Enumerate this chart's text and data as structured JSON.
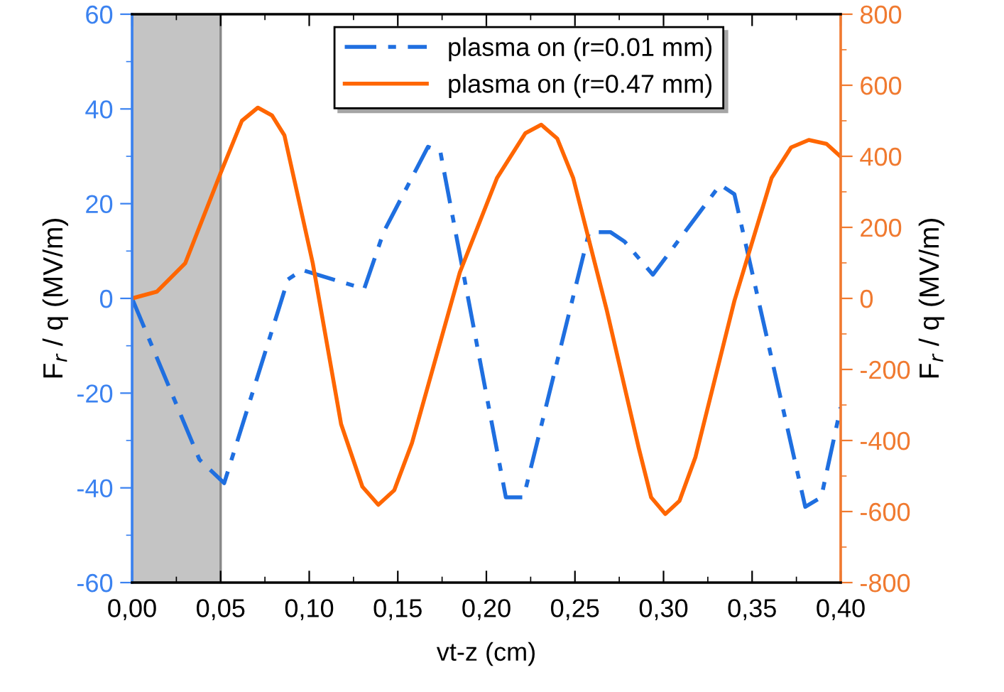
{
  "chart_data": {
    "type": "line",
    "xlabel": "vt-z (cm)",
    "ylabel": "F$_{r}$ / q (MV/m)",
    "y2label": "F$_{r}$ / q (MV/m)",
    "xlim": [
      0,
      0.4
    ],
    "xticks": [
      {
        "value": 0,
        "label": "0,00"
      },
      {
        "value": 0.05,
        "label": "0,05"
      },
      {
        "value": 0.1,
        "label": "0,10"
      },
      {
        "value": 0.15,
        "label": "0,15"
      },
      {
        "value": 0.2,
        "label": "0,20"
      },
      {
        "value": 0.25,
        "label": "0,25"
      },
      {
        "value": 0.3,
        "label": "0,30"
      },
      {
        "value": 0.35,
        "label": "0,35"
      },
      {
        "value": 0.4,
        "label": "0,40"
      }
    ],
    "ylim": [
      -60,
      60
    ],
    "yticks": [
      -60,
      -40,
      -20,
      0,
      20,
      40,
      60
    ],
    "y2lim": [
      -800,
      800
    ],
    "y2ticks": [
      -800,
      -600,
      -400,
      -200,
      0,
      200,
      400,
      600,
      800
    ],
    "legend": "top",
    "grid": false,
    "bands": [
      {
        "axis": "x",
        "from": 0,
        "to": 0.05,
        "color": "#c4c4c4"
      }
    ],
    "series": [
      {
        "name": "plasma on (r=0.01 mm)",
        "color": "#1f6fe0",
        "line_style": "dashdot",
        "x": [
          0,
          0.038,
          0.052,
          0.088,
          0.096,
          0.131,
          0.142,
          0.167,
          0.174,
          0.211,
          0.221,
          0.258,
          0.27,
          0.278,
          0.294,
          0.332,
          0.34,
          0.38,
          0.389,
          0.4
        ],
        "values": [
          0,
          -34,
          -39,
          4,
          6,
          2,
          14,
          32,
          31,
          -42,
          -42,
          14,
          14,
          12,
          5,
          24,
          22,
          -44,
          -42,
          -23
        ]
      },
      {
        "name": "plasma on (r=0.47 mm)",
        "color": "#ff6600",
        "line_style": "solid",
        "axis": "y2",
        "x": [
          0,
          0.014,
          0.03,
          0.05,
          0.062,
          0.071,
          0.079,
          0.086,
          0.102,
          0.118,
          0.13,
          0.139,
          0.148,
          0.158,
          0.185,
          0.206,
          0.222,
          0.231,
          0.24,
          0.249,
          0.268,
          0.286,
          0.293,
          0.301,
          0.309,
          0.318,
          0.34,
          0.361,
          0.372,
          0.382,
          0.392,
          0.4
        ],
        "values": [
          0,
          19,
          99,
          353,
          500,
          537,
          515,
          459,
          99,
          -354,
          -530,
          -581,
          -540,
          -407,
          73,
          339,
          465,
          489,
          450,
          339,
          -34,
          -421,
          -560,
          -607,
          -570,
          -447,
          -7,
          339,
          425,
          446,
          435,
          399
        ]
      }
    ]
  }
}
